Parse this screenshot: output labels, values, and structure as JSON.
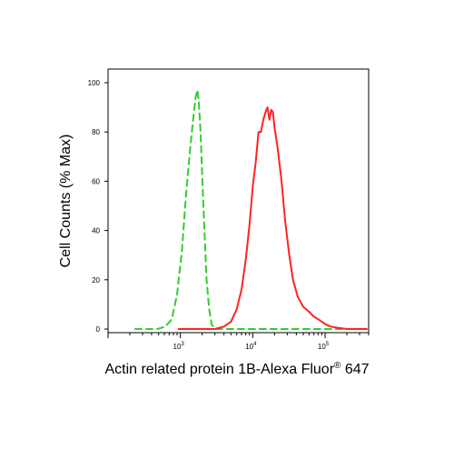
{
  "chart_data": {
    "type": "line",
    "title": "",
    "xlabel": "Actin related protein 1B-Alexa Fluor",
    "xlabel_sup": "®",
    "xlabel_suffix": " 647",
    "ylabel": "Cell Counts (% Max)",
    "x_scale": "log",
    "xlim": [
      100,
      400000
    ],
    "ylim": [
      0,
      100
    ],
    "grid": false,
    "legend": "none",
    "y_ticks": [
      {
        "value": 0,
        "label": "0"
      },
      {
        "value": 20,
        "label": "20"
      },
      {
        "value": 40,
        "label": "40"
      },
      {
        "value": 60,
        "label": "60"
      },
      {
        "value": 80,
        "label": "80"
      },
      {
        "value": 100,
        "label": "100"
      }
    ],
    "x_major_ticks": [
      {
        "value": 1000,
        "base": "10",
        "exp": "3"
      },
      {
        "value": 10000,
        "base": "10",
        "exp": "4"
      },
      {
        "value": 100000,
        "base": "10",
        "exp": "5"
      }
    ],
    "series": [
      {
        "color": "#33cc33",
        "dash": "dashed",
        "x": [
          480,
          620,
          760,
          900,
          1050,
          1200,
          1350,
          1500,
          1620,
          1720,
          1800,
          1900,
          2000,
          2150,
          2300,
          2500,
          2700,
          3000
        ],
        "y": [
          0,
          1,
          4,
          14,
          32,
          55,
          72,
          85,
          94,
          97,
          92,
          80,
          62,
          40,
          20,
          8,
          2,
          0
        ]
      },
      {
        "color": "#ff2222",
        "dash": "solid",
        "x": [
          3000,
          4000,
          5000,
          6000,
          7000,
          8000,
          9000,
          10000,
          11000,
          12000,
          13000,
          14000,
          15000,
          16000,
          17000,
          18000,
          19000,
          20000,
          22000,
          25000,
          28000,
          32000,
          36000,
          42000,
          50000,
          60000,
          70000,
          80000,
          90000,
          100000,
          120000,
          150000,
          200000,
          300000
        ],
        "y": [
          0,
          1,
          3,
          8,
          16,
          28,
          42,
          58,
          68,
          80,
          80,
          85,
          88,
          90,
          85,
          89,
          88,
          82,
          74,
          60,
          44,
          30,
          20,
          13,
          9,
          7,
          5,
          4,
          3,
          2,
          1,
          0.5,
          0,
          0
        ]
      }
    ]
  }
}
